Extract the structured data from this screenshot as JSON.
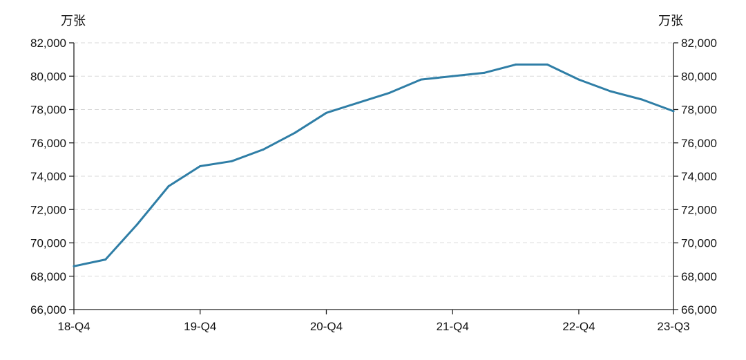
{
  "chart_data": {
    "type": "line",
    "left_unit": "万张",
    "right_unit": "万张",
    "x": [
      "18-Q4",
      "19-Q1",
      "19-Q2",
      "19-Q3",
      "19-Q4",
      "20-Q1",
      "20-Q2",
      "20-Q3",
      "20-Q4",
      "21-Q1",
      "21-Q2",
      "21-Q3",
      "21-Q4",
      "22-Q1",
      "22-Q2",
      "22-Q3",
      "22-Q4",
      "23-Q1",
      "23-Q2",
      "23-Q3"
    ],
    "x_tick_labels": [
      "18-Q4",
      "19-Q4",
      "20-Q4",
      "21-Q4",
      "22-Q4",
      "23-Q3"
    ],
    "series": [
      {
        "values": [
          68600,
          69000,
          71100,
          73400,
          74600,
          74900,
          75600,
          76600,
          77800,
          78400,
          79000,
          79800,
          80000,
          80200,
          80700,
          80700,
          79800,
          79100,
          78600,
          77900
        ]
      }
    ],
    "ylim": [
      66000,
      82000
    ],
    "y_ticks": [
      66000,
      68000,
      70000,
      72000,
      74000,
      76000,
      78000,
      80000,
      82000
    ],
    "y_tick_labels": [
      "66,000",
      "68,000",
      "70,000",
      "72,000",
      "74,000",
      "76,000",
      "78,000",
      "80,000",
      "82,000"
    ],
    "grid": true,
    "colors": {
      "series": "#2f7ea6",
      "grid": "#d9d9d9",
      "axis": "#222222"
    }
  }
}
